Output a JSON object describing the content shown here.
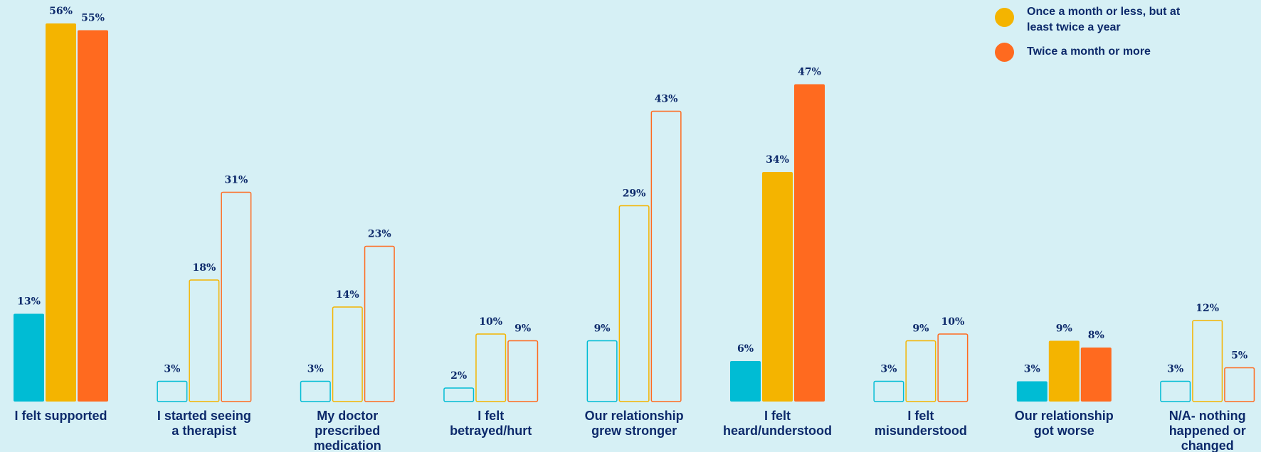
{
  "chart_data": {
    "type": "bar",
    "categories": [
      [
        "I felt supported"
      ],
      [
        "I started seeing",
        "a therapist"
      ],
      [
        "My doctor",
        "prescribed",
        "medication"
      ],
      [
        "I felt",
        "betrayed/hurt"
      ],
      [
        "Our relationship",
        "grew stronger"
      ],
      [
        "I felt",
        "heard/understood"
      ],
      [
        "I felt",
        "misunderstood"
      ],
      [
        "Our relationship",
        "got worse"
      ],
      [
        "N/A- nothing",
        "happened or",
        "changed"
      ]
    ],
    "series": [
      {
        "values": [
          13,
          3,
          3,
          2,
          9,
          6,
          3,
          3,
          3
        ],
        "color": "#00bcd4"
      },
      {
        "name": "Once a month or less, but at least twice a year",
        "values": [
          56,
          18,
          14,
          10,
          29,
          34,
          9,
          9,
          12
        ],
        "color": "#f4b400"
      },
      {
        "name": "Twice a month or more",
        "values": [
          55,
          31,
          23,
          9,
          43,
          47,
          10,
          8,
          5
        ],
        "color": "#ff6a1f"
      }
    ],
    "highlighted_categories": [
      0,
      5,
      7
    ],
    "value_label_suffix": "%",
    "ylim": [
      0,
      60
    ],
    "grid": false,
    "legend_position": "top-right"
  },
  "legend": {
    "items": [
      {
        "lines": [
          "Once a month or less, but at",
          "least twice a year"
        ],
        "color": "#f4b400"
      },
      {
        "lines": [
          "Twice a month or more"
        ],
        "color": "#ff6a1f"
      }
    ]
  },
  "colors": {
    "background": "#d6f0f5",
    "text": "#0d2a6b"
  }
}
